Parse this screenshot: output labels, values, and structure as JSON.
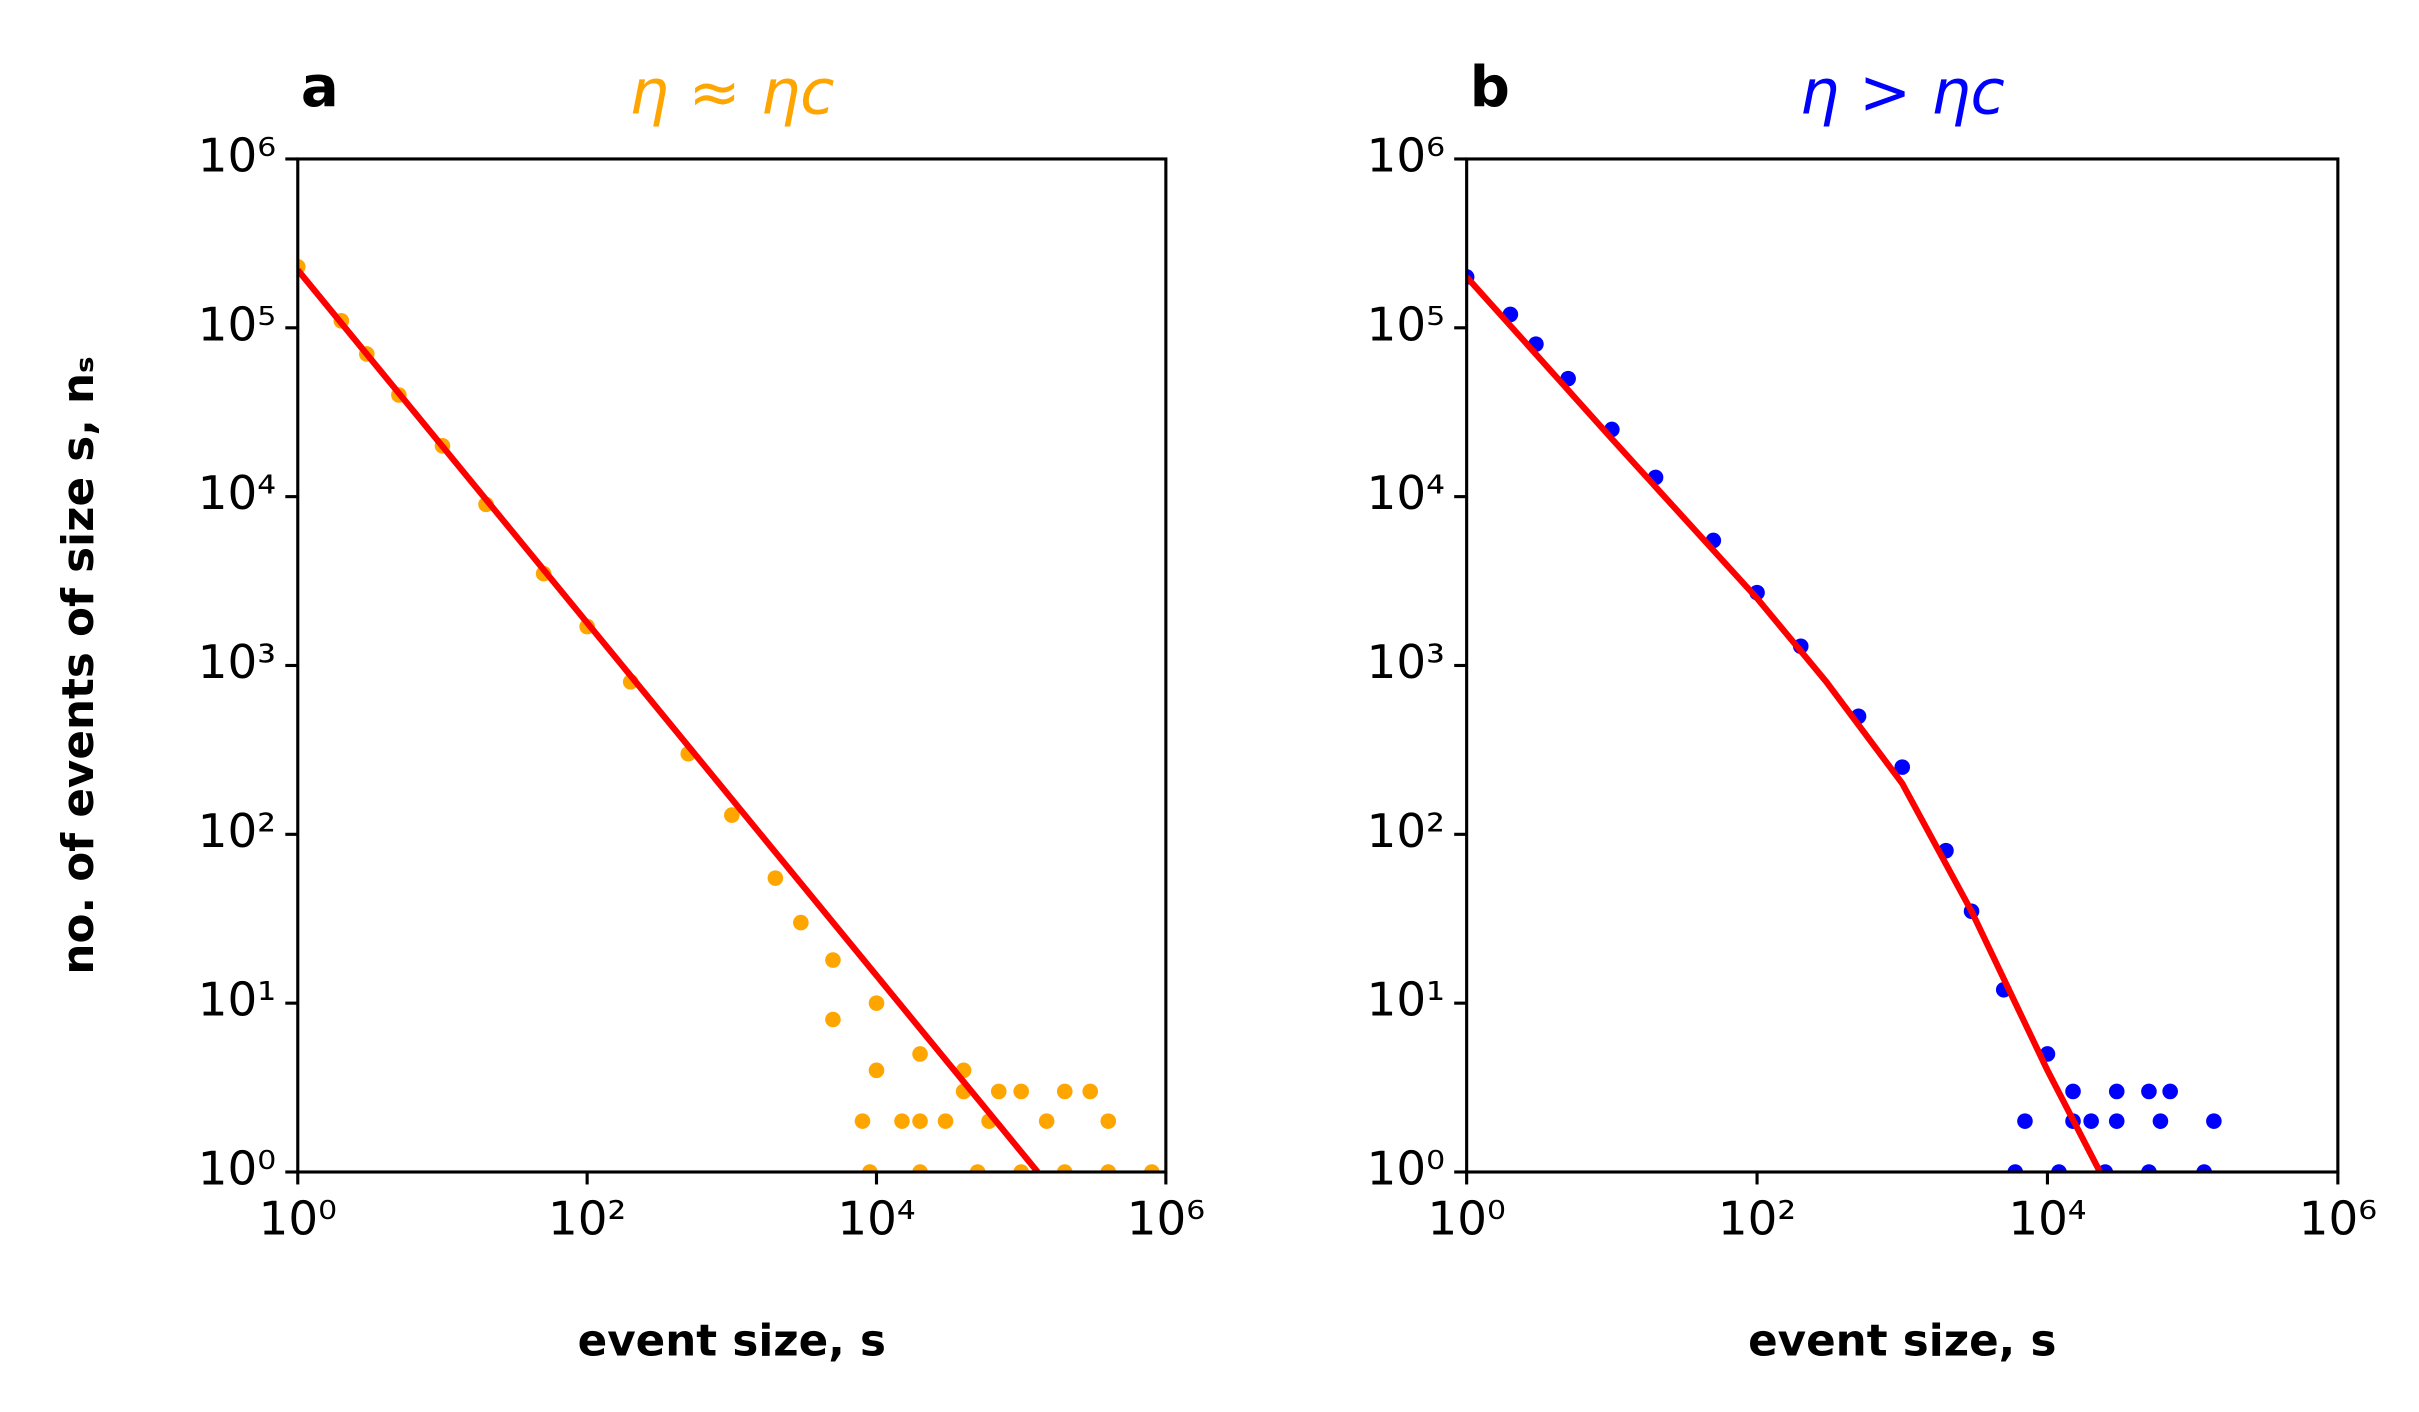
{
  "chart_data": [
    {
      "type": "scatter",
      "panel": "a",
      "title": "η ≈ ηc",
      "title_color": "#ffa500",
      "xlabel": "event size, s",
      "ylabel": "no. of events of size s, nₛ",
      "xlim": [
        1,
        1000000
      ],
      "ylim": [
        1,
        1000000
      ],
      "log": true,
      "xticks": [
        {
          "value": 1,
          "label": "10⁰"
        },
        {
          "value": 100,
          "label": "10²"
        },
        {
          "value": 10000,
          "label": "10⁴"
        },
        {
          "value": 1000000,
          "label": "10⁶"
        }
      ],
      "yticks": [
        {
          "value": 1,
          "label": "10⁰"
        },
        {
          "value": 10,
          "label": "10¹"
        },
        {
          "value": 100,
          "label": "10²"
        },
        {
          "value": 1000,
          "label": "10³"
        },
        {
          "value": 10000,
          "label": "10⁴"
        },
        {
          "value": 100000,
          "label": "10⁵"
        },
        {
          "value": 1000000,
          "label": "10⁶"
        }
      ],
      "series": [
        {
          "color": "#ffa500",
          "style": "points",
          "x": [
            1,
            2,
            3,
            5,
            10,
            20,
            50,
            100,
            200,
            500,
            1000,
            2000,
            3000,
            5000,
            5000,
            10000,
            10000,
            20000,
            20000,
            40000,
            40000,
            70000,
            100000,
            200000,
            300000,
            8000,
            15000,
            30000,
            60000,
            150000,
            400000,
            9000,
            20000,
            50000,
            100000,
            200000,
            400000,
            800000
          ],
          "values": [
            230000,
            110000,
            70000,
            40000,
            20000,
            9000,
            3500,
            1700,
            800,
            300,
            130,
            55,
            30,
            18,
            8,
            10,
            4,
            5,
            2,
            3,
            4,
            3,
            3,
            3,
            3,
            2,
            2,
            2,
            2,
            2,
            2,
            1,
            1,
            1,
            1,
            1,
            1,
            1
          ]
        },
        {
          "color": "#ff0000",
          "style": "line",
          "x": [
            1,
            130000
          ],
          "values": [
            220000,
            1
          ]
        }
      ]
    },
    {
      "type": "scatter",
      "panel": "b",
      "title": "η > ηc",
      "title_color": "#0000ff",
      "xlabel": "event size, s",
      "xlim": [
        1,
        1000000
      ],
      "ylim": [
        1,
        1000000
      ],
      "log": true,
      "xticks": [
        {
          "value": 1,
          "label": "10⁰"
        },
        {
          "value": 100,
          "label": "10²"
        },
        {
          "value": 10000,
          "label": "10⁴"
        },
        {
          "value": 1000000,
          "label": "10⁶"
        }
      ],
      "yticks": [
        {
          "value": 1,
          "label": "10⁰"
        },
        {
          "value": 10,
          "label": "10¹"
        },
        {
          "value": 100,
          "label": "10²"
        },
        {
          "value": 1000,
          "label": "10³"
        },
        {
          "value": 10000,
          "label": "10⁴"
        },
        {
          "value": 100000,
          "label": "10⁵"
        },
        {
          "value": 1000000,
          "label": "10⁶"
        }
      ],
      "series": [
        {
          "color": "#0000ff",
          "style": "points",
          "x": [
            1,
            2,
            3,
            5,
            10,
            20,
            50,
            100,
            200,
            500,
            1000,
            2000,
            3000,
            5000,
            10000,
            20000,
            15000,
            30000,
            50000,
            70000,
            7000,
            15000,
            30000,
            60000,
            140000,
            6000,
            12000,
            25000,
            50000,
            120000
          ],
          "values": [
            200000,
            120000,
            80000,
            50000,
            25000,
            13000,
            5500,
            2700,
            1300,
            500,
            250,
            80,
            35,
            12,
            5,
            2,
            3,
            3,
            3,
            3,
            2,
            2,
            2,
            2,
            2,
            1,
            1,
            1,
            1,
            1
          ]
        },
        {
          "color": "#ff0000",
          "style": "line",
          "x": [
            1,
            10,
            100,
            300,
            1000,
            3000,
            10000,
            23000
          ],
          "values": [
            200000,
            22000,
            2500,
            800,
            200,
            35,
            4,
            1
          ]
        }
      ]
    }
  ]
}
